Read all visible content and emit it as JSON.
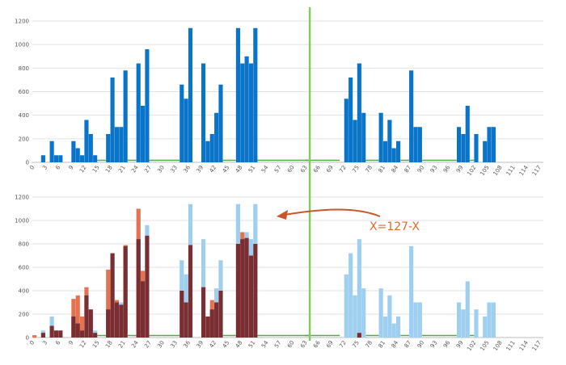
{
  "colors": {
    "top_bar": "#0a74c9",
    "light_bar": "#9ecfef",
    "orange_bar": "#e4714f",
    "dark_bar": "#7a2e31",
    "gap_line": "#55a84a",
    "divider": "#80cc5e",
    "gridline": "#e2e2e2",
    "arrow": "#c8562a",
    "annotation": "#e06a2c"
  },
  "chart_data": [
    {
      "type": "bar",
      "panel": "top",
      "x_min": 0,
      "x_max": 117,
      "ylim": [
        0,
        1200
      ],
      "y_ticks": [
        0,
        200,
        400,
        600,
        800,
        1000,
        1200
      ],
      "x_ticks": [
        0,
        3,
        6,
        9,
        12,
        15,
        18,
        21,
        24,
        27,
        30,
        33,
        36,
        39,
        42,
        45,
        48,
        51,
        54,
        57,
        60,
        63,
        66,
        69,
        72,
        75,
        78,
        81,
        84,
        87,
        90,
        93,
        96,
        99,
        102,
        105,
        108,
        111,
        114,
        117
      ],
      "grid": true,
      "divider_x": 63,
      "series": [
        {
          "values": {
            "2": 60,
            "4": 180,
            "5": 60,
            "6": 60,
            "9": 180,
            "10": 120,
            "11": 60,
            "12": 360,
            "13": 240,
            "14": 60,
            "17": 240,
            "18": 720,
            "19": 300,
            "20": 300,
            "21": 780,
            "24": 840,
            "25": 480,
            "26": 960,
            "34": 660,
            "35": 540,
            "36": 1140,
            "39": 840,
            "40": 180,
            "41": 240,
            "42": 420,
            "43": 660,
            "47": 1140,
            "48": 840,
            "49": 900,
            "50": 840,
            "51": 1140,
            "72": 540,
            "73": 720,
            "74": 360,
            "75": 840,
            "76": 420,
            "80": 420,
            "81": 180,
            "82": 360,
            "83": 120,
            "84": 180,
            "87": 780,
            "88": 300,
            "89": 300,
            "98": 300,
            "99": 240,
            "100": 480,
            "102": 240,
            "104": 180,
            "105": 300,
            "106": 300
          }
        }
      ],
      "gap_segments": [
        [
          15,
          16
        ],
        [
          22,
          23
        ],
        [
          27,
          33
        ],
        [
          44,
          46
        ],
        [
          52,
          63
        ],
        [
          63,
          70
        ],
        [
          77,
          79
        ],
        [
          85,
          86
        ],
        [
          90,
          97
        ],
        [
          101,
          101
        ]
      ]
    },
    {
      "type": "bar",
      "panel": "bottom",
      "x_min": 0,
      "x_max": 117,
      "ylim": [
        0,
        1200
      ],
      "y_ticks": [
        0,
        200,
        400,
        600,
        800,
        1000,
        1200
      ],
      "x_ticks": [
        0,
        3,
        6,
        9,
        12,
        15,
        18,
        21,
        24,
        27,
        30,
        33,
        36,
        39,
        42,
        45,
        48,
        51,
        54,
        57,
        60,
        63,
        66,
        69,
        72,
        75,
        78,
        81,
        84,
        87,
        90,
        93,
        96,
        99,
        102,
        105,
        108,
        111,
        114,
        117
      ],
      "grid": true,
      "divider_x": 63,
      "annotation": "X=127-X",
      "series": [
        {
          "role": "original",
          "values": {
            "2": 60,
            "4": 180,
            "5": 60,
            "6": 60,
            "9": 180,
            "10": 120,
            "11": 60,
            "12": 360,
            "13": 240,
            "14": 60,
            "17": 240,
            "18": 720,
            "19": 300,
            "20": 300,
            "21": 780,
            "24": 840,
            "25": 480,
            "26": 960,
            "34": 660,
            "35": 540,
            "36": 1140,
            "39": 840,
            "40": 180,
            "41": 240,
            "42": 420,
            "43": 660,
            "47": 1140,
            "48": 840,
            "49": 900,
            "50": 840,
            "51": 1140,
            "72": 540,
            "73": 720,
            "74": 360,
            "75": 840,
            "76": 420,
            "80": 420,
            "81": 180,
            "82": 360,
            "83": 120,
            "84": 180,
            "87": 780,
            "88": 300,
            "89": 300,
            "98": 300,
            "99": 240,
            "100": 480,
            "102": 240,
            "104": 180,
            "105": 300,
            "106": 300
          }
        },
        {
          "role": "mirrored",
          "values": {
            "0": 20,
            "2": 40,
            "4": 100,
            "5": 60,
            "6": 60,
            "9": 330,
            "10": 360,
            "11": 180,
            "12": 430,
            "13": 240,
            "14": 40,
            "17": 580,
            "18": 720,
            "19": 320,
            "20": 280,
            "21": 790,
            "24": 1100,
            "25": 570,
            "26": 870,
            "34": 400,
            "35": 300,
            "36": 790,
            "39": 430,
            "40": 180,
            "41": 320,
            "42": 300,
            "43": 400,
            "47": 800,
            "48": 900,
            "49": 850,
            "50": 700,
            "51": 800,
            "75": 40
          }
        }
      ],
      "gap_segments": [
        [
          15,
          16
        ],
        [
          22,
          23
        ],
        [
          27,
          33
        ],
        [
          44,
          46
        ],
        [
          52,
          63
        ],
        [
          63,
          70
        ],
        [
          77,
          79
        ],
        [
          85,
          86
        ],
        [
          90,
          97
        ],
        [
          101,
          101
        ]
      ]
    }
  ]
}
